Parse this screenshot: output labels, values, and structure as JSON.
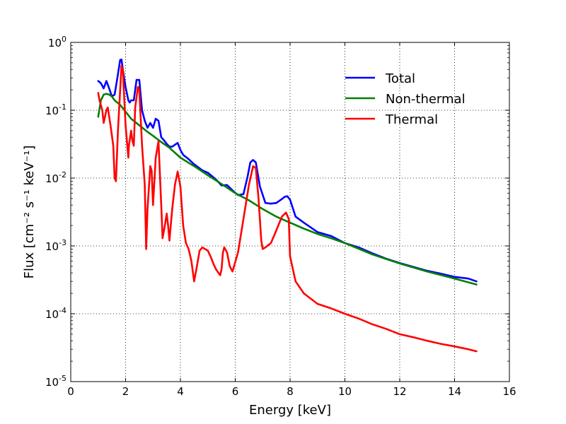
{
  "chart_data": {
    "type": "line",
    "xlabel": "Energy [keV]",
    "ylabel": "Flux [cm⁻² s⁻¹ keV⁻¹]",
    "xlim": [
      0,
      16
    ],
    "ylim": [
      1e-05,
      1
    ],
    "yscale": "log",
    "x_ticks": [
      "0",
      "2",
      "4",
      "6",
      "8",
      "10",
      "12",
      "14",
      "16"
    ],
    "y_ticks": [
      {
        "base": "10",
        "exp": "0"
      },
      {
        "base": "10",
        "exp": "-1"
      },
      {
        "base": "10",
        "exp": "-2"
      },
      {
        "base": "10",
        "exp": "-3"
      },
      {
        "base": "10",
        "exp": "-4"
      },
      {
        "base": "10",
        "exp": "-5"
      }
    ],
    "grid": true,
    "legend_position": "top-right",
    "series": [
      {
        "name": "Total",
        "color": "#0000ff",
        "x": [
          1.0,
          1.1,
          1.2,
          1.3,
          1.4,
          1.5,
          1.6,
          1.7,
          1.8,
          1.85,
          1.9,
          2.0,
          2.1,
          2.15,
          2.2,
          2.3,
          2.4,
          2.5,
          2.6,
          2.7,
          2.8,
          2.9,
          3.0,
          3.1,
          3.2,
          3.3,
          3.4,
          3.5,
          3.6,
          3.7,
          3.8,
          3.9,
          4.0,
          4.1,
          4.3,
          4.5,
          4.8,
          5.0,
          5.3,
          5.5,
          5.7,
          5.9,
          6.1,
          6.3,
          6.45,
          6.55,
          6.65,
          6.75,
          6.9,
          7.1,
          7.3,
          7.5,
          7.7,
          7.8,
          7.9,
          8.0,
          8.2,
          8.5,
          9.0,
          9.5,
          10.0,
          10.5,
          11.0,
          11.5,
          12.0,
          12.5,
          13.0,
          13.5,
          14.0,
          14.5,
          14.8
        ],
        "y": [
          0.27,
          0.25,
          0.21,
          0.27,
          0.21,
          0.16,
          0.17,
          0.3,
          0.55,
          0.56,
          0.4,
          0.22,
          0.14,
          0.13,
          0.14,
          0.14,
          0.28,
          0.28,
          0.1,
          0.07,
          0.055,
          0.065,
          0.055,
          0.075,
          0.07,
          0.04,
          0.036,
          0.032,
          0.029,
          0.029,
          0.031,
          0.033,
          0.026,
          0.022,
          0.019,
          0.016,
          0.013,
          0.012,
          0.0095,
          0.0078,
          0.0079,
          0.0066,
          0.0056,
          0.0058,
          0.0105,
          0.017,
          0.0185,
          0.017,
          0.0075,
          0.0043,
          0.0042,
          0.0043,
          0.0049,
          0.0053,
          0.0054,
          0.0048,
          0.0027,
          0.0022,
          0.0016,
          0.0014,
          0.0011,
          0.00095,
          0.00078,
          0.00065,
          0.00056,
          0.00049,
          0.00043,
          0.00039,
          0.00035,
          0.00033,
          0.0003
        ]
      },
      {
        "name": "Non-thermal",
        "color": "#008000",
        "x": [
          1.0,
          1.1,
          1.2,
          1.3,
          1.4,
          1.5,
          1.6,
          1.8,
          2.0,
          2.2,
          2.5,
          2.8,
          3.0,
          3.3,
          3.6,
          4.0,
          4.5,
          5.0,
          5.5,
          6.0,
          6.5,
          7.0,
          7.5,
          8.0,
          8.5,
          9.0,
          9.5,
          10.0,
          11.0,
          12.0,
          13.0,
          14.0,
          14.8
        ],
        "y": [
          0.08,
          0.14,
          0.17,
          0.175,
          0.17,
          0.16,
          0.14,
          0.12,
          0.095,
          0.075,
          0.06,
          0.048,
          0.042,
          0.034,
          0.028,
          0.02,
          0.015,
          0.011,
          0.0082,
          0.006,
          0.0047,
          0.0035,
          0.0027,
          0.0022,
          0.0018,
          0.0015,
          0.0013,
          0.0011,
          0.00075,
          0.00055,
          0.00042,
          0.00033,
          0.00027
        ]
      },
      {
        "name": "Thermal",
        "color": "#ff0000",
        "x": [
          1.0,
          1.05,
          1.15,
          1.2,
          1.3,
          1.35,
          1.45,
          1.55,
          1.6,
          1.65,
          1.72,
          1.85,
          1.9,
          2.0,
          2.1,
          2.12,
          2.2,
          2.25,
          2.3,
          2.35,
          2.45,
          2.5,
          2.6,
          2.7,
          2.75,
          2.8,
          2.9,
          2.95,
          3.0,
          3.1,
          3.2,
          3.3,
          3.35,
          3.45,
          3.5,
          3.55,
          3.6,
          3.7,
          3.8,
          3.9,
          4.0,
          4.1,
          4.2,
          4.3,
          4.4,
          4.5,
          4.6,
          4.7,
          4.8,
          5.0,
          5.1,
          5.2,
          5.3,
          5.45,
          5.5,
          5.55,
          5.6,
          5.7,
          5.8,
          5.9,
          6.1,
          6.3,
          6.5,
          6.65,
          6.75,
          6.85,
          6.95,
          7.0,
          7.1,
          7.3,
          7.5,
          7.7,
          7.85,
          7.95,
          8.0,
          8.2,
          8.5,
          9.0,
          9.5,
          10.0,
          10.5,
          11.0,
          11.5,
          12.0,
          12.5,
          13.0,
          13.5,
          14.0,
          14.5,
          14.8
        ],
        "y": [
          0.18,
          0.14,
          0.1,
          0.065,
          0.1,
          0.11,
          0.06,
          0.03,
          0.01,
          0.009,
          0.05,
          0.45,
          0.4,
          0.06,
          0.02,
          0.03,
          0.05,
          0.035,
          0.03,
          0.11,
          0.22,
          0.2,
          0.03,
          0.008,
          0.0009,
          0.0035,
          0.015,
          0.013,
          0.004,
          0.02,
          0.035,
          0.004,
          0.0013,
          0.0022,
          0.003,
          0.002,
          0.0012,
          0.0035,
          0.008,
          0.0125,
          0.0075,
          0.002,
          0.0011,
          0.0009,
          0.0006,
          0.0003,
          0.0005,
          0.00085,
          0.00095,
          0.00085,
          0.0007,
          0.00055,
          0.00045,
          0.00037,
          0.00045,
          0.0008,
          0.00095,
          0.0008,
          0.0005,
          0.00042,
          0.0008,
          0.0025,
          0.008,
          0.015,
          0.014,
          0.005,
          0.0012,
          0.0009,
          0.00095,
          0.0011,
          0.0017,
          0.0027,
          0.0031,
          0.0025,
          0.0007,
          0.0003,
          0.0002,
          0.00014,
          0.00012,
          0.0001,
          8.5e-05,
          7e-05,
          6e-05,
          5e-05,
          4.5e-05,
          4e-05,
          3.6e-05,
          3.3e-05,
          3e-05,
          2.8e-05
        ]
      }
    ]
  }
}
